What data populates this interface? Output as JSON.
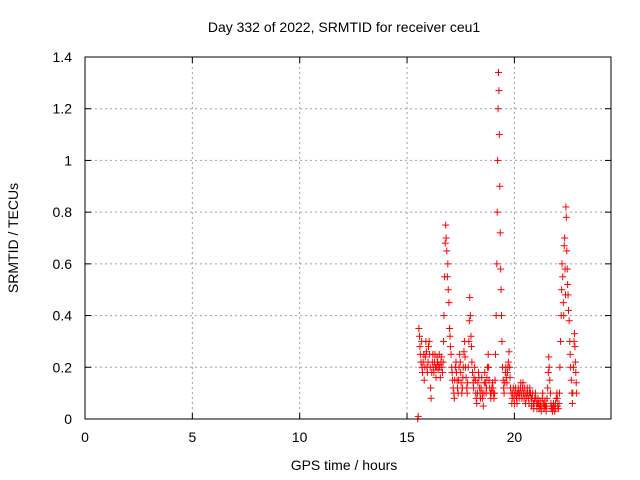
{
  "chart_data": {
    "type": "scatter",
    "title": "Day 332 of 2022, SRMTID for receiver ceu1",
    "xlabel": "GPS time / hours",
    "ylabel": "SRMTID / TECUs",
    "xlim": [
      0,
      24.5
    ],
    "ylim": [
      0,
      1.4
    ],
    "xticks": [
      0,
      5,
      10,
      15,
      20
    ],
    "xtick_labels": [
      "0",
      "5",
      "10",
      "15",
      "20"
    ],
    "yticks": [
      0,
      0.2,
      0.4,
      0.6,
      0.8,
      1,
      1.2,
      1.4
    ],
    "ytick_labels": [
      "0",
      "0.2",
      "0.4",
      "0.6",
      "0.8",
      "1",
      "1.2",
      "1.4"
    ],
    "grid": true,
    "marker": "+",
    "color": "#ff0000",
    "series": [
      {
        "name": "ceu1",
        "points": [
          [
            15.5,
            0.0
          ],
          [
            15.52,
            0.01
          ],
          [
            15.55,
            0.35
          ],
          [
            15.58,
            0.32
          ],
          [
            15.6,
            0.28
          ],
          [
            15.62,
            0.25
          ],
          [
            15.65,
            0.22
          ],
          [
            15.68,
            0.3
          ],
          [
            15.7,
            0.2
          ],
          [
            15.72,
            0.18
          ],
          [
            15.75,
            0.22
          ],
          [
            15.78,
            0.25
          ],
          [
            15.8,
            0.15
          ],
          [
            15.83,
            0.2
          ],
          [
            15.85,
            0.24
          ],
          [
            15.88,
            0.3
          ],
          [
            15.9,
            0.26
          ],
          [
            15.93,
            0.2
          ],
          [
            15.95,
            0.18
          ],
          [
            15.98,
            0.22
          ],
          [
            16.0,
            0.28
          ],
          [
            16.03,
            0.3
          ],
          [
            16.05,
            0.25
          ],
          [
            16.08,
            0.2
          ],
          [
            16.1,
            0.12
          ],
          [
            16.12,
            0.08
          ],
          [
            16.15,
            0.18
          ],
          [
            16.18,
            0.22
          ],
          [
            16.2,
            0.25
          ],
          [
            16.22,
            0.2
          ],
          [
            16.25,
            0.18
          ],
          [
            16.28,
            0.22
          ],
          [
            16.3,
            0.25
          ],
          [
            16.33,
            0.2
          ],
          [
            16.35,
            0.16
          ],
          [
            16.38,
            0.2
          ],
          [
            16.4,
            0.24
          ],
          [
            16.42,
            0.22
          ],
          [
            16.45,
            0.19
          ],
          [
            16.48,
            0.21
          ],
          [
            16.5,
            0.25
          ],
          [
            16.52,
            0.2
          ],
          [
            16.55,
            0.16
          ],
          [
            16.58,
            0.22
          ],
          [
            16.6,
            0.24
          ],
          [
            16.62,
            0.2
          ],
          [
            16.65,
            0.18
          ],
          [
            16.68,
            0.22
          ],
          [
            16.7,
            0.3
          ],
          [
            16.72,
            0.4
          ],
          [
            16.75,
            0.55
          ],
          [
            16.78,
            0.68
          ],
          [
            16.8,
            0.75
          ],
          [
            16.82,
            0.7
          ],
          [
            16.85,
            0.65
          ],
          [
            16.88,
            0.55
          ],
          [
            16.9,
            0.6
          ],
          [
            16.92,
            0.5
          ],
          [
            16.95,
            0.45
          ],
          [
            16.98,
            0.35
          ],
          [
            17.0,
            0.32
          ],
          [
            17.02,
            0.28
          ],
          [
            17.05,
            0.25
          ],
          [
            17.08,
            0.2
          ],
          [
            17.1,
            0.18
          ],
          [
            17.12,
            0.15
          ],
          [
            17.15,
            0.12
          ],
          [
            17.18,
            0.1
          ],
          [
            17.2,
            0.08
          ],
          [
            17.22,
            0.15
          ],
          [
            17.25,
            0.2
          ],
          [
            17.28,
            0.22
          ],
          [
            17.3,
            0.18
          ],
          [
            17.33,
            0.15
          ],
          [
            17.35,
            0.12
          ],
          [
            17.38,
            0.1
          ],
          [
            17.4,
            0.15
          ],
          [
            17.42,
            0.2
          ],
          [
            17.45,
            0.25
          ],
          [
            17.48,
            0.22
          ],
          [
            17.5,
            0.18
          ],
          [
            17.52,
            0.14
          ],
          [
            17.55,
            0.1
          ],
          [
            17.58,
            0.12
          ],
          [
            17.6,
            0.16
          ],
          [
            17.62,
            0.2
          ],
          [
            17.65,
            0.26
          ],
          [
            17.68,
            0.3
          ],
          [
            17.7,
            0.24
          ],
          [
            17.72,
            0.2
          ],
          [
            17.75,
            0.16
          ],
          [
            17.78,
            0.12
          ],
          [
            17.8,
            0.1
          ],
          [
            17.82,
            0.14
          ],
          [
            17.85,
            0.2
          ],
          [
            17.88,
            0.3
          ],
          [
            17.9,
            0.38
          ],
          [
            17.92,
            0.47
          ],
          [
            17.95,
            0.4
          ],
          [
            17.98,
            0.32
          ],
          [
            18.0,
            0.28
          ],
          [
            18.02,
            0.22
          ],
          [
            18.05,
            0.18
          ],
          [
            18.08,
            0.14
          ],
          [
            18.1,
            0.12
          ],
          [
            18.12,
            0.16
          ],
          [
            18.15,
            0.2
          ],
          [
            18.18,
            0.15
          ],
          [
            18.2,
            0.1
          ],
          [
            18.22,
            0.08
          ],
          [
            18.25,
            0.06
          ],
          [
            18.28,
            0.1
          ],
          [
            18.3,
            0.14
          ],
          [
            18.33,
            0.18
          ],
          [
            18.35,
            0.16
          ],
          [
            18.38,
            0.12
          ],
          [
            18.4,
            0.1
          ],
          [
            18.42,
            0.08
          ],
          [
            18.45,
            0.12
          ],
          [
            18.48,
            0.16
          ],
          [
            18.5,
            0.1
          ],
          [
            18.52,
            0.08
          ],
          [
            18.55,
            0.05
          ],
          [
            18.58,
            0.1
          ],
          [
            18.6,
            0.14
          ],
          [
            18.62,
            0.18
          ],
          [
            18.65,
            0.14
          ],
          [
            18.68,
            0.1
          ],
          [
            18.7,
            0.12
          ],
          [
            18.72,
            0.16
          ],
          [
            18.75,
            0.2
          ],
          [
            18.78,
            0.25
          ],
          [
            18.8,
            0.2
          ],
          [
            18.82,
            0.15
          ],
          [
            18.85,
            0.12
          ],
          [
            18.88,
            0.1
          ],
          [
            18.9,
            0.08
          ],
          [
            18.92,
            0.1
          ],
          [
            18.95,
            0.12
          ],
          [
            18.98,
            0.14
          ],
          [
            19.0,
            0.12
          ],
          [
            19.02,
            0.1
          ],
          [
            19.05,
            0.08
          ],
          [
            19.08,
            0.1
          ],
          [
            19.1,
            0.15
          ],
          [
            19.12,
            0.25
          ],
          [
            19.15,
            0.4
          ],
          [
            19.18,
            0.6
          ],
          [
            19.2,
            0.8
          ],
          [
            19.22,
            1.0
          ],
          [
            19.24,
            1.2
          ],
          [
            19.26,
            1.34
          ],
          [
            19.28,
            1.27
          ],
          [
            19.3,
            1.1
          ],
          [
            19.32,
            0.9
          ],
          [
            19.34,
            0.72
          ],
          [
            19.36,
            0.58
          ],
          [
            19.38,
            0.5
          ],
          [
            19.4,
            0.4
          ],
          [
            19.42,
            0.3
          ],
          [
            19.45,
            0.2
          ],
          [
            19.48,
            0.15
          ],
          [
            19.5,
            0.12
          ],
          [
            19.52,
            0.1
          ],
          [
            19.55,
            0.14
          ],
          [
            19.58,
            0.18
          ],
          [
            19.6,
            0.2
          ],
          [
            19.62,
            0.16
          ],
          [
            19.65,
            0.14
          ],
          [
            19.68,
            0.18
          ],
          [
            19.7,
            0.2
          ],
          [
            19.72,
            0.22
          ],
          [
            19.75,
            0.26
          ],
          [
            19.78,
            0.2
          ],
          [
            19.8,
            0.16
          ],
          [
            19.82,
            0.12
          ],
          [
            19.85,
            0.1
          ],
          [
            19.88,
            0.06
          ],
          [
            19.9,
            0.08
          ],
          [
            19.92,
            0.1
          ],
          [
            19.95,
            0.12
          ],
          [
            19.98,
            0.08
          ],
          [
            20.0,
            0.06
          ],
          [
            20.02,
            0.1
          ],
          [
            20.05,
            0.12
          ],
          [
            20.08,
            0.1
          ],
          [
            20.1,
            0.08
          ],
          [
            20.12,
            0.06
          ],
          [
            20.15,
            0.1
          ],
          [
            20.18,
            0.12
          ],
          [
            20.2,
            0.1
          ],
          [
            20.22,
            0.08
          ],
          [
            20.25,
            0.1
          ],
          [
            20.28,
            0.12
          ],
          [
            20.3,
            0.14
          ],
          [
            20.32,
            0.1
          ],
          [
            20.35,
            0.08
          ],
          [
            20.38,
            0.12
          ],
          [
            20.4,
            0.14
          ],
          [
            20.42,
            0.1
          ],
          [
            20.45,
            0.08
          ],
          [
            20.48,
            0.12
          ],
          [
            20.5,
            0.1
          ],
          [
            20.52,
            0.06
          ],
          [
            20.55,
            0.08
          ],
          [
            20.58,
            0.1
          ],
          [
            20.6,
            0.12
          ],
          [
            20.62,
            0.1
          ],
          [
            20.65,
            0.08
          ],
          [
            20.68,
            0.06
          ],
          [
            20.7,
            0.1
          ],
          [
            20.72,
            0.12
          ],
          [
            20.75,
            0.1
          ],
          [
            20.78,
            0.08
          ],
          [
            20.8,
            0.05
          ],
          [
            20.82,
            0.08
          ],
          [
            20.85,
            0.1
          ],
          [
            20.88,
            0.06
          ],
          [
            20.9,
            0.04
          ],
          [
            20.92,
            0.06
          ],
          [
            20.95,
            0.08
          ],
          [
            20.98,
            0.1
          ],
          [
            21.0,
            0.08
          ],
          [
            21.02,
            0.06
          ],
          [
            21.05,
            0.04
          ],
          [
            21.08,
            0.06
          ],
          [
            21.1,
            0.08
          ],
          [
            21.12,
            0.06
          ],
          [
            21.15,
            0.04
          ],
          [
            21.18,
            0.05
          ],
          [
            21.2,
            0.07
          ],
          [
            21.22,
            0.05
          ],
          [
            21.25,
            0.03
          ],
          [
            21.28,
            0.05
          ],
          [
            21.3,
            0.08
          ],
          [
            21.32,
            0.1
          ],
          [
            21.35,
            0.06
          ],
          [
            21.38,
            0.04
          ],
          [
            21.4,
            0.05
          ],
          [
            21.42,
            0.07
          ],
          [
            21.45,
            0.05
          ],
          [
            21.48,
            0.03
          ],
          [
            21.5,
            0.05
          ],
          [
            21.52,
            0.08
          ],
          [
            21.55,
            0.12
          ],
          [
            21.58,
            0.18
          ],
          [
            21.6,
            0.24
          ],
          [
            21.62,
            0.2
          ],
          [
            21.65,
            0.15
          ],
          [
            21.68,
            0.1
          ],
          [
            21.7,
            0.06
          ],
          [
            21.72,
            0.04
          ],
          [
            21.75,
            0.05
          ],
          [
            21.78,
            0.03
          ],
          [
            21.8,
            0.04
          ],
          [
            21.82,
            0.06
          ],
          [
            21.85,
            0.05
          ],
          [
            21.88,
            0.03
          ],
          [
            21.9,
            0.04
          ],
          [
            21.92,
            0.06
          ],
          [
            21.95,
            0.08
          ],
          [
            21.98,
            0.1
          ],
          [
            22.0,
            0.08
          ],
          [
            22.02,
            0.05
          ],
          [
            22.05,
            0.04
          ],
          [
            22.08,
            0.06
          ],
          [
            22.1,
            0.1
          ],
          [
            22.12,
            0.2
          ],
          [
            22.15,
            0.3
          ],
          [
            22.18,
            0.4
          ],
          [
            22.2,
            0.5
          ],
          [
            22.22,
            0.6
          ],
          [
            22.25,
            0.55
          ],
          [
            22.28,
            0.45
          ],
          [
            22.3,
            0.4
          ],
          [
            22.32,
            0.67
          ],
          [
            22.34,
            0.7
          ],
          [
            22.36,
            0.58
          ],
          [
            22.38,
            0.48
          ],
          [
            22.4,
            0.82
          ],
          [
            22.42,
            0.78
          ],
          [
            22.44,
            0.65
          ],
          [
            22.46,
            0.58
          ],
          [
            22.48,
            0.52
          ],
          [
            22.5,
            0.48
          ],
          [
            22.52,
            0.42
          ],
          [
            22.55,
            0.38
          ],
          [
            22.58,
            0.3
          ],
          [
            22.6,
            0.25
          ],
          [
            22.62,
            0.2
          ],
          [
            22.65,
            0.15
          ],
          [
            22.68,
            0.1
          ],
          [
            22.7,
            0.06
          ],
          [
            22.72,
            0.1
          ],
          [
            22.75,
            0.2
          ],
          [
            22.78,
            0.3
          ],
          [
            22.8,
            0.33
          ],
          [
            22.82,
            0.28
          ],
          [
            22.84,
            0.22
          ],
          [
            22.86,
            0.18
          ],
          [
            22.88,
            0.14
          ],
          [
            22.9,
            0.1
          ]
        ]
      }
    ]
  }
}
